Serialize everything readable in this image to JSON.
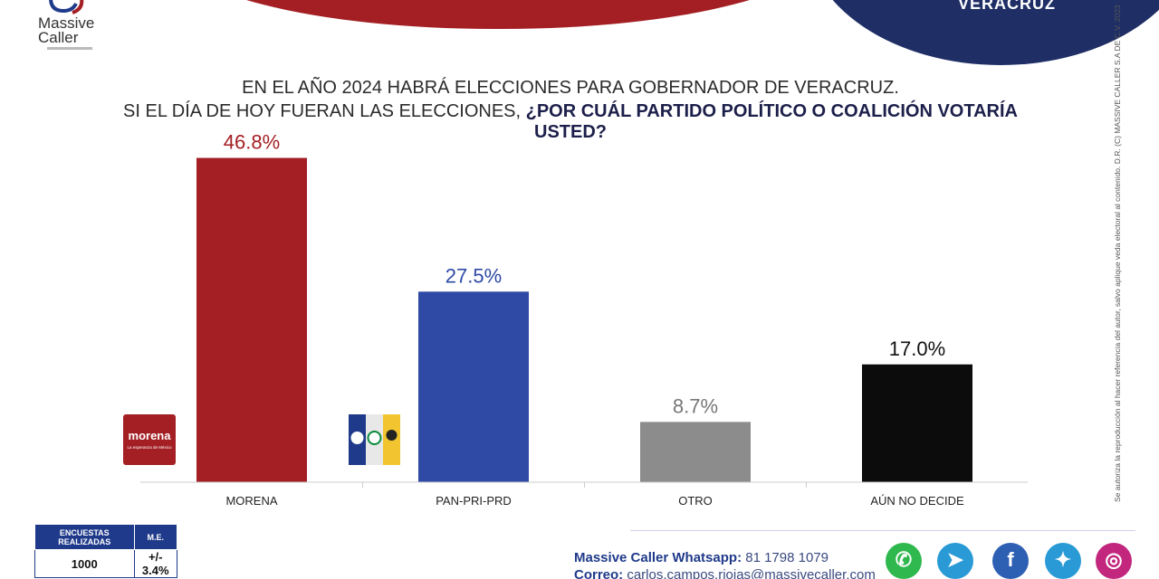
{
  "header": {
    "banner_text": "",
    "region": "VERACRUZ"
  },
  "logo": {
    "line1": "Massive",
    "line2": "Caller"
  },
  "question": {
    "line1": "EN EL AÑO 2024 HABRÁ ELECCIONES PARA GOBERNADOR DE VERACRUZ.",
    "line2_plain": "SI EL DÍA DE HOY FUERAN LAS ELECCIONES, ",
    "line2_bold": "¿POR CUÁL PARTIDO POLÍTICO O COALICIÓN VOTARÍA USTED?"
  },
  "chart_data": {
    "type": "bar",
    "categories": [
      "MORENA",
      "PAN-PRI-PRD",
      "OTRO",
      "AÚN NO DECIDE"
    ],
    "values": [
      46.8,
      27.5,
      8.7,
      17.0
    ],
    "data_labels": [
      "46.8%",
      "27.5%",
      "8.7%",
      "17.0%"
    ],
    "ylim": [
      0,
      50
    ],
    "colors": [
      "#a31f24",
      "#2e4aa5",
      "#8c8c8c",
      "#0c0c0c"
    ],
    "label_colors": [
      "#a31f24",
      "#2e4aa5",
      "#777777",
      "#111111"
    ],
    "grid": false,
    "legend": "none"
  },
  "party_logos": {
    "morena": "morena",
    "morena_sub": "La esperanza de México"
  },
  "side_note": "Se autoriza la reproducción al hacer referencia del autor, salvo aplique veda electoral al contenido. D.R. (C) MASSIVE CALLER S.A DE C.V. 2023",
  "methodology": {
    "col1_header": "ENCUESTAS REALIZADAS",
    "col2_header": "M.E.",
    "col1_value": "1000",
    "col2_value": "+/- 3.4%"
  },
  "contact": {
    "whatsapp_label": "Massive Caller Whatsapp:",
    "whatsapp_value": "81 1798 1079",
    "email_label": "Correo:",
    "email_value": "carlos.campos.riojas@massivecaller.com"
  },
  "social": [
    {
      "icon": "whatsapp-icon",
      "color": "#2fb84e",
      "glyph": "✆"
    },
    {
      "icon": "telegram-icon",
      "color": "#2a9ad6",
      "glyph": "➤"
    },
    {
      "icon": "facebook-icon",
      "color": "#2d5fb3",
      "glyph": "f"
    },
    {
      "icon": "twitter-icon",
      "color": "#2a9ad6",
      "glyph": "✦"
    },
    {
      "icon": "instagram-icon",
      "color": "#c2267d",
      "glyph": "◎"
    }
  ]
}
